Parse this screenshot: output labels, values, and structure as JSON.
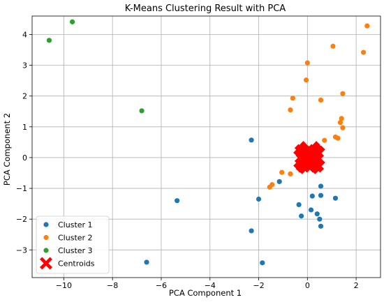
{
  "chart_data": {
    "type": "scatter",
    "title": "K-Means Clustering Result with PCA",
    "xlabel": "PCA Component 1",
    "ylabel": "PCA Component 2",
    "xlim": [
      -11.3,
      3.0
    ],
    "ylim": [
      -3.9,
      4.6
    ],
    "xticks": [
      -10,
      -8,
      -6,
      -4,
      -2,
      0,
      2
    ],
    "yticks": [
      -3,
      -2,
      -1,
      0,
      1,
      2,
      3,
      4
    ],
    "grid": true,
    "legend_position": "lower-left",
    "series": [
      {
        "name": "Cluster 1",
        "color": "#1f77b4",
        "points": [
          [
            -2.3,
            0.57
          ],
          [
            -5.35,
            -1.4
          ],
          [
            -2.3,
            -2.38
          ],
          [
            -2.0,
            -1.35
          ],
          [
            -1.85,
            -3.42
          ],
          [
            -6.6,
            -3.4
          ],
          [
            -1.15,
            -0.78
          ],
          [
            -0.35,
            -1.53
          ],
          [
            -0.25,
            -1.9
          ],
          [
            0.15,
            -1.7
          ],
          [
            0.2,
            -1.25
          ],
          [
            0.4,
            -1.83
          ],
          [
            0.5,
            -2.0
          ],
          [
            0.55,
            -2.23
          ],
          [
            0.55,
            -0.93
          ],
          [
            0.55,
            -1.23
          ],
          [
            1.15,
            -1.32
          ]
        ]
      },
      {
        "name": "Cluster 2",
        "color": "#ff7f0e",
        "points": [
          [
            2.45,
            4.28
          ],
          [
            1.05,
            3.62
          ],
          [
            2.3,
            3.42
          ],
          [
            0.0,
            3.08
          ],
          [
            -0.05,
            2.52
          ],
          [
            1.45,
            2.08
          ],
          [
            -0.6,
            1.93
          ],
          [
            0.55,
            1.87
          ],
          [
            -0.7,
            1.55
          ],
          [
            1.4,
            1.27
          ],
          [
            1.35,
            1.14
          ],
          [
            1.45,
            0.97
          ],
          [
            1.15,
            0.67
          ],
          [
            1.25,
            0.63
          ],
          [
            0.7,
            0.56
          ],
          [
            -1.05,
            -0.48
          ],
          [
            -0.7,
            -0.53
          ],
          [
            -1.45,
            -0.88
          ],
          [
            -1.55,
            -0.96
          ]
        ]
      },
      {
        "name": "Cluster 3",
        "color": "#2ca02c",
        "points": [
          [
            -9.65,
            4.41
          ],
          [
            -10.6,
            3.81
          ],
          [
            -6.8,
            1.52
          ]
        ]
      }
    ],
    "centroids": {
      "name": "Centroids",
      "color": "#ff0000",
      "marker": "X",
      "points": [
        [
          0.0,
          0.05
        ],
        [
          0.15,
          -0.05
        ],
        [
          -0.1,
          0.1
        ],
        [
          0.2,
          0.1
        ],
        [
          -0.05,
          -0.15
        ],
        [
          0.1,
          0.2
        ],
        [
          0.25,
          -0.15
        ],
        [
          -0.15,
          -0.05
        ],
        [
          0.05,
          -0.2
        ],
        [
          0.3,
          0.05
        ]
      ]
    }
  }
}
